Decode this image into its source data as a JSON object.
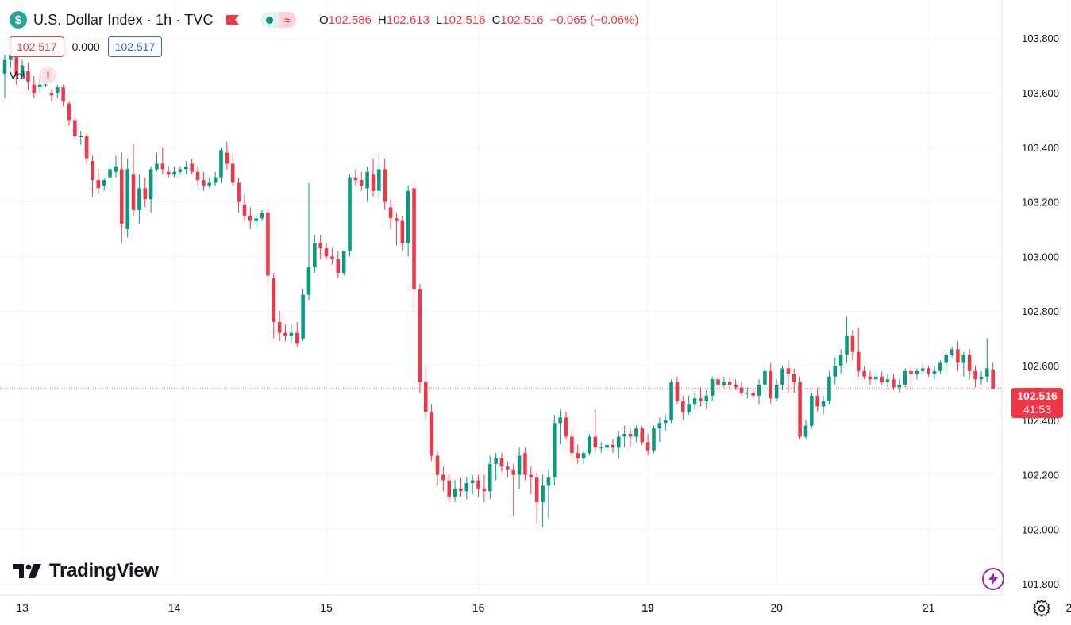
{
  "header": {
    "symbol_icon": "$",
    "title": "U.S. Dollar Index · 1h · TVC",
    "flag_icon": "flag-icon",
    "status_wave": "≈"
  },
  "ohlc": {
    "o_label": "O",
    "o_value": "102.586",
    "h_label": "H",
    "h_value": "102.613",
    "l_label": "L",
    "l_value": "102.516",
    "c_label": "C",
    "c_value": "102.516",
    "change": "−0.065 (−0.06%)"
  },
  "quote": {
    "sell": "102.517",
    "spread": "0.000",
    "buy": "102.517"
  },
  "volume": {
    "label": "Vol",
    "warning": "!"
  },
  "price_label": {
    "price": "102.516",
    "countdown": "41:53"
  },
  "logo": {
    "text": "TradingView"
  },
  "colors": {
    "up": "#089981",
    "down": "#f23645",
    "grid": "#f0f3fa",
    "axis_text": "#131722",
    "accent": "#2962ff"
  },
  "icons": {
    "bolt": "bolt-icon",
    "settings": "gear-icon"
  },
  "chart_data": {
    "type": "candlestick",
    "title": "U.S. Dollar Index · 1h · TVC",
    "xlabel": "",
    "ylabel": "",
    "ylim": [
      101.76,
      103.94
    ],
    "y_ticks": [
      "103.800",
      "103.600",
      "103.400",
      "103.200",
      "103.000",
      "102.800",
      "102.600",
      "102.400",
      "102.200",
      "102.000",
      "101.800"
    ],
    "x_ticks": [
      {
        "label": "13",
        "index": 3,
        "bold": false
      },
      {
        "label": "14",
        "index": 29,
        "bold": false
      },
      {
        "label": "15",
        "index": 55,
        "bold": false
      },
      {
        "label": "16",
        "index": 81,
        "bold": false
      },
      {
        "label": "19",
        "index": 110,
        "bold": true
      },
      {
        "label": "20",
        "index": 132,
        "bold": false
      },
      {
        "label": "21",
        "index": 158,
        "bold": false
      },
      {
        "label": "2",
        "index": 182,
        "bold": false
      }
    ],
    "last_price": 102.516,
    "grid": true,
    "candles": [
      [
        103.67,
        103.74,
        103.58,
        103.72
      ],
      [
        103.72,
        103.79,
        103.69,
        103.74
      ],
      [
        103.73,
        103.76,
        103.63,
        103.66
      ],
      [
        103.66,
        103.72,
        103.65,
        103.7
      ],
      [
        103.68,
        103.71,
        103.61,
        103.64
      ],
      [
        103.63,
        103.66,
        103.58,
        103.6
      ],
      [
        103.62,
        103.65,
        103.6,
        103.63
      ],
      [
        103.63,
        103.64,
        103.62,
        103.63
      ],
      [
        103.6,
        103.61,
        103.57,
        103.59
      ],
      [
        103.6,
        103.63,
        103.58,
        103.62
      ],
      [
        103.62,
        103.63,
        103.55,
        103.57
      ],
      [
        103.56,
        103.57,
        103.48,
        103.5
      ],
      [
        103.5,
        103.51,
        103.43,
        103.44
      ],
      [
        103.44,
        103.46,
        103.41,
        103.44
      ],
      [
        103.44,
        103.45,
        103.34,
        103.36
      ],
      [
        103.35,
        103.37,
        103.22,
        103.28
      ],
      [
        103.28,
        103.32,
        103.23,
        103.25
      ],
      [
        103.26,
        103.29,
        103.24,
        103.28
      ],
      [
        103.29,
        103.34,
        103.24,
        103.32
      ],
      [
        103.31,
        103.37,
        103.29,
        103.33
      ],
      [
        103.32,
        103.38,
        103.05,
        103.12
      ],
      [
        103.1,
        103.36,
        103.07,
        103.32
      ],
      [
        103.3,
        103.41,
        103.15,
        103.17
      ],
      [
        103.17,
        103.3,
        103.12,
        103.25
      ],
      [
        103.25,
        103.29,
        103.18,
        103.21
      ],
      [
        103.21,
        103.33,
        103.16,
        103.32
      ],
      [
        103.32,
        103.38,
        103.31,
        103.34
      ],
      [
        103.34,
        103.4,
        103.3,
        103.32
      ],
      [
        103.31,
        103.33,
        103.29,
        103.3
      ],
      [
        103.3,
        103.33,
        103.29,
        103.31
      ],
      [
        103.31,
        103.33,
        103.3,
        103.32
      ],
      [
        103.32,
        103.35,
        103.3,
        103.33
      ],
      [
        103.34,
        103.36,
        103.3,
        103.31
      ],
      [
        103.31,
        103.33,
        103.26,
        103.28
      ],
      [
        103.28,
        103.31,
        103.24,
        103.26
      ],
      [
        103.26,
        103.29,
        103.25,
        103.27
      ],
      [
        103.27,
        103.31,
        103.26,
        103.29
      ],
      [
        103.29,
        103.4,
        103.27,
        103.39
      ],
      [
        103.38,
        103.42,
        103.32,
        103.34
      ],
      [
        103.34,
        103.38,
        103.26,
        103.27
      ],
      [
        103.27,
        103.29,
        103.16,
        103.2
      ],
      [
        103.19,
        103.23,
        103.13,
        103.15
      ],
      [
        103.15,
        103.18,
        103.1,
        103.13
      ],
      [
        103.13,
        103.16,
        103.11,
        103.14
      ],
      [
        103.14,
        103.17,
        103.13,
        103.16
      ],
      [
        103.16,
        103.18,
        102.9,
        102.93
      ],
      [
        102.92,
        102.94,
        102.7,
        102.76
      ],
      [
        102.76,
        102.8,
        102.69,
        102.72
      ],
      [
        102.72,
        102.75,
        102.69,
        102.71
      ],
      [
        102.71,
        102.75,
        102.68,
        102.72
      ],
      [
        102.72,
        102.76,
        102.67,
        102.68
      ],
      [
        102.7,
        102.88,
        102.69,
        102.86
      ],
      [
        102.86,
        103.27,
        102.84,
        102.96
      ],
      [
        102.96,
        103.08,
        102.94,
        103.05
      ],
      [
        103.05,
        103.08,
        102.99,
        103.03
      ],
      [
        103.03,
        103.05,
        102.99,
        103.0
      ],
      [
        103.0,
        103.03,
        102.97,
        102.99
      ],
      [
        102.99,
        103.02,
        102.92,
        102.94
      ],
      [
        102.94,
        103.02,
        102.93,
        103.02
      ],
      [
        103.02,
        103.3,
        103.0,
        103.29
      ],
      [
        103.29,
        103.32,
        103.26,
        103.28
      ],
      [
        103.28,
        103.31,
        103.24,
        103.26
      ],
      [
        103.25,
        103.33,
        103.2,
        103.31
      ],
      [
        103.3,
        103.36,
        103.22,
        103.24
      ],
      [
        103.24,
        103.38,
        103.21,
        103.32
      ],
      [
        103.32,
        103.36,
        103.17,
        103.2
      ],
      [
        103.18,
        103.21,
        103.1,
        103.14
      ],
      [
        103.14,
        103.16,
        103.04,
        103.13
      ],
      [
        103.13,
        103.15,
        103.02,
        103.05
      ],
      [
        103.05,
        103.26,
        103.0,
        103.24
      ],
      [
        103.25,
        103.28,
        102.8,
        102.88
      ],
      [
        102.88,
        102.9,
        102.5,
        102.54
      ],
      [
        102.54,
        102.6,
        102.4,
        102.43
      ],
      [
        102.43,
        102.46,
        102.25,
        102.27
      ],
      [
        102.27,
        102.29,
        102.16,
        102.2
      ],
      [
        102.2,
        102.23,
        102.14,
        102.18
      ],
      [
        102.18,
        102.2,
        102.1,
        102.12
      ],
      [
        102.12,
        102.18,
        102.1,
        102.15
      ],
      [
        102.15,
        102.19,
        102.12,
        102.14
      ],
      [
        102.14,
        102.19,
        102.11,
        102.17
      ],
      [
        102.17,
        102.2,
        102.13,
        102.18
      ],
      [
        102.18,
        102.2,
        102.12,
        102.15
      ],
      [
        102.15,
        102.2,
        102.1,
        102.14
      ],
      [
        102.14,
        102.27,
        102.11,
        102.24
      ],
      [
        102.24,
        102.28,
        102.18,
        102.26
      ],
      [
        102.26,
        102.28,
        102.21,
        102.23
      ],
      [
        102.23,
        102.25,
        102.19,
        102.22
      ],
      [
        102.22,
        102.24,
        102.05,
        102.2
      ],
      [
        102.2,
        102.3,
        102.15,
        102.27
      ],
      [
        102.28,
        102.3,
        102.18,
        102.2
      ],
      [
        102.2,
        102.23,
        102.13,
        102.19
      ],
      [
        102.19,
        102.21,
        102.02,
        102.1
      ],
      [
        102.1,
        102.2,
        102.01,
        102.16
      ],
      [
        102.16,
        102.22,
        102.04,
        102.19
      ],
      [
        102.19,
        102.42,
        102.16,
        102.39
      ],
      [
        102.39,
        102.44,
        102.31,
        102.41
      ],
      [
        102.41,
        102.43,
        102.33,
        102.34
      ],
      [
        102.34,
        102.37,
        102.25,
        102.28
      ],
      [
        102.28,
        102.31,
        102.24,
        102.26
      ],
      [
        102.26,
        102.29,
        102.24,
        102.28
      ],
      [
        102.28,
        102.35,
        102.27,
        102.34
      ],
      [
        102.34,
        102.44,
        102.28,
        102.3
      ],
      [
        102.3,
        102.32,
        102.28,
        102.3
      ],
      [
        102.3,
        102.32,
        102.29,
        102.31
      ],
      [
        102.31,
        102.33,
        102.28,
        102.3
      ],
      [
        102.3,
        102.36,
        102.26,
        102.34
      ],
      [
        102.34,
        102.38,
        102.3,
        102.35
      ],
      [
        102.35,
        102.37,
        102.3,
        102.34
      ],
      [
        102.34,
        102.38,
        102.32,
        102.37
      ],
      [
        102.37,
        102.38,
        102.31,
        102.32
      ],
      [
        102.32,
        102.35,
        102.27,
        102.29
      ],
      [
        102.29,
        102.38,
        102.28,
        102.37
      ],
      [
        102.37,
        102.41,
        102.32,
        102.39
      ],
      [
        102.39,
        102.42,
        102.36,
        102.4
      ],
      [
        102.4,
        102.55,
        102.39,
        102.54
      ],
      [
        102.54,
        102.56,
        102.46,
        102.47
      ],
      [
        102.47,
        102.49,
        102.4,
        102.43
      ],
      [
        102.43,
        102.49,
        102.42,
        102.46
      ],
      [
        102.46,
        102.5,
        102.44,
        102.48
      ],
      [
        102.48,
        102.52,
        102.45,
        102.47
      ],
      [
        102.47,
        102.51,
        102.44,
        102.49
      ],
      [
        102.49,
        102.56,
        102.47,
        102.55
      ],
      [
        102.55,
        102.56,
        102.5,
        102.53
      ],
      [
        102.53,
        102.56,
        102.52,
        102.54
      ],
      [
        102.54,
        102.56,
        102.51,
        102.53
      ],
      [
        102.53,
        102.55,
        102.51,
        102.52
      ],
      [
        102.52,
        102.54,
        102.49,
        102.5
      ],
      [
        102.5,
        102.52,
        102.48,
        102.5
      ],
      [
        102.5,
        102.52,
        102.48,
        102.49
      ],
      [
        102.49,
        102.55,
        102.46,
        102.53
      ],
      [
        102.53,
        102.6,
        102.49,
        102.58
      ],
      [
        102.58,
        102.61,
        102.46,
        102.48
      ],
      [
        102.48,
        102.55,
        102.47,
        102.53
      ],
      [
        102.53,
        102.6,
        102.51,
        102.59
      ],
      [
        102.59,
        102.62,
        102.5,
        102.57
      ],
      [
        102.57,
        102.59,
        102.5,
        102.54
      ],
      [
        102.54,
        102.56,
        102.33,
        102.34
      ],
      [
        102.34,
        102.4,
        102.33,
        102.38
      ],
      [
        102.38,
        102.5,
        102.37,
        102.49
      ],
      [
        102.49,
        102.52,
        102.43,
        102.45
      ],
      [
        102.45,
        102.49,
        102.42,
        102.47
      ],
      [
        102.47,
        102.58,
        102.46,
        102.56
      ],
      [
        102.56,
        102.63,
        102.53,
        102.6
      ],
      [
        102.6,
        102.66,
        102.57,
        102.64
      ],
      [
        102.64,
        102.78,
        102.61,
        102.71
      ],
      [
        102.71,
        102.73,
        102.62,
        102.65
      ],
      [
        102.65,
        102.74,
        102.56,
        102.58
      ],
      [
        102.58,
        102.6,
        102.55,
        102.56
      ],
      [
        102.56,
        102.58,
        102.53,
        102.55
      ],
      [
        102.55,
        102.58,
        102.53,
        102.56
      ],
      [
        102.56,
        102.58,
        102.53,
        102.54
      ],
      [
        102.54,
        102.57,
        102.52,
        102.55
      ],
      [
        102.55,
        102.57,
        102.51,
        102.52
      ],
      [
        102.52,
        102.55,
        102.5,
        102.53
      ],
      [
        102.53,
        102.59,
        102.52,
        102.58
      ],
      [
        102.58,
        102.6,
        102.53,
        102.57
      ],
      [
        102.57,
        102.59,
        102.55,
        102.58
      ],
      [
        102.58,
        102.61,
        102.57,
        102.59
      ],
      [
        102.59,
        102.6,
        102.56,
        102.57
      ],
      [
        102.57,
        102.6,
        102.55,
        102.58
      ],
      [
        102.58,
        102.62,
        102.57,
        102.61
      ],
      [
        102.61,
        102.65,
        102.57,
        102.64
      ],
      [
        102.64,
        102.67,
        102.63,
        102.66
      ],
      [
        102.66,
        102.69,
        102.58,
        102.61
      ],
      [
        102.61,
        102.65,
        102.56,
        102.64
      ],
      [
        102.64,
        102.66,
        102.55,
        102.58
      ],
      [
        102.58,
        102.6,
        102.52,
        102.55
      ],
      [
        102.55,
        102.58,
        102.53,
        102.56
      ],
      [
        102.56,
        102.7,
        102.54,
        102.59
      ],
      [
        102.586,
        102.613,
        102.516,
        102.516
      ]
    ]
  }
}
